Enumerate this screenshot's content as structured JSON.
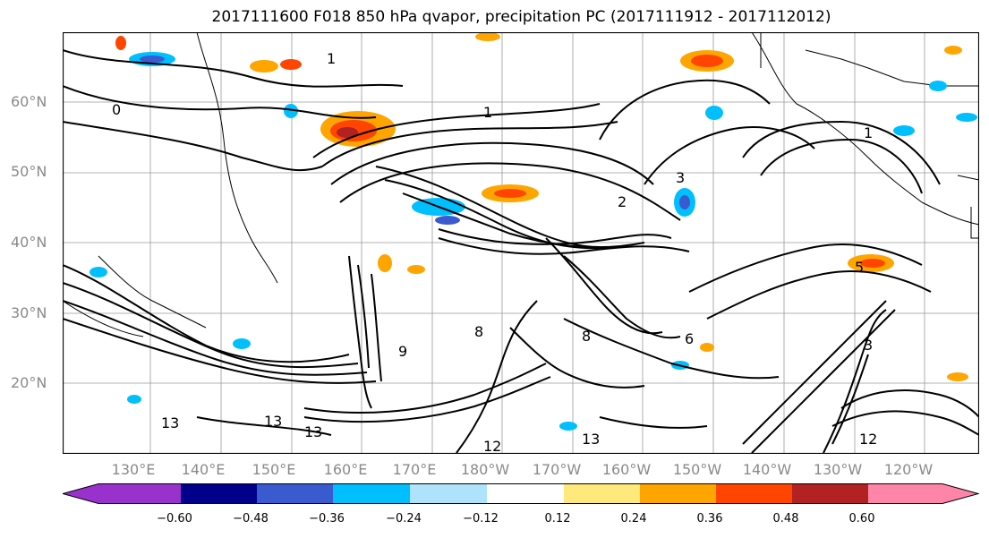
{
  "title": "2017111600 F018 850 hPa qvapor, precipitation PC (2017111912 - 2017112012)",
  "lat_labels": [
    "60°N",
    "50°N",
    "40°N",
    "30°N",
    "20°N"
  ],
  "lon_labels": [
    "130°E",
    "140°E",
    "150°E",
    "160°E",
    "170°E",
    "180°W",
    "170°W",
    "160°W",
    "150°W",
    "140°W",
    "130°W",
    "120°W"
  ],
  "contour_labels": [
    "1",
    "0",
    "1",
    "1",
    "2",
    "3",
    "8",
    "9",
    "13",
    "12",
    "13",
    "13",
    "6",
    "8",
    "3",
    "5",
    "13",
    "12"
  ],
  "colorbar": {
    "colors": [
      "#9932cc",
      "#00008b",
      "#3a5bd0",
      "#00bfff",
      "#afe3fb",
      "#ffffff",
      "#ffe87c",
      "#ffa500",
      "#ff4500",
      "#b22222",
      "#ff85a8"
    ],
    "tick_labels": [
      "−0.60",
      "−0.48",
      "−0.36",
      "−0.24",
      "−0.12",
      "0.12",
      "0.24",
      "0.36",
      "0.48",
      "0.60"
    ]
  }
}
